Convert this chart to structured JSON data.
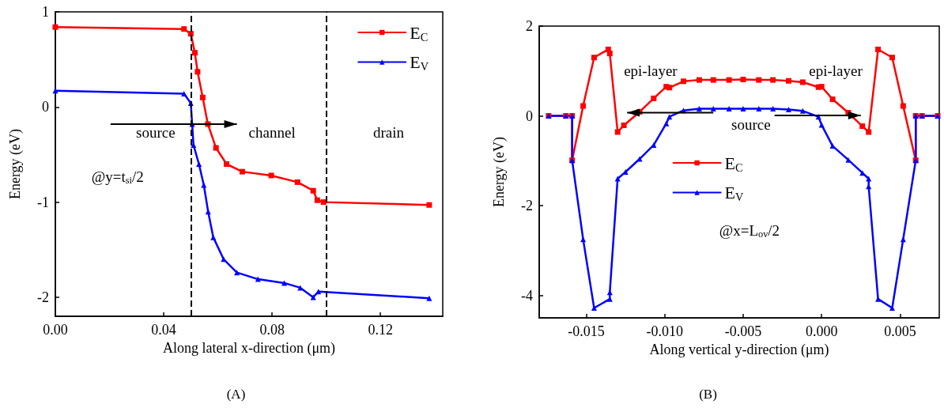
{
  "chart_data": [
    {
      "type": "line",
      "title": "(A)",
      "xlabel": "Along lateral x-direction (μm)",
      "ylabel": "Energy (eV)",
      "xlim": [
        0,
        0.143
      ],
      "xticks": [
        {
          "value": 0,
          "label": "0.00"
        },
        {
          "value": 0.04,
          "label": "0.04"
        },
        {
          "value": 0.08,
          "label": "0.08"
        },
        {
          "value": 0.12,
          "label": "0.12"
        }
      ],
      "ylim": [
        -2.2,
        1
      ],
      "yticks": [
        -2,
        -1,
        0,
        1
      ],
      "grid": false,
      "legend": "top right",
      "line_style": "solid",
      "series": [
        {
          "name": "E$_{C}$",
          "color": "#ff0000",
          "marker": "square",
          "x": [
            0,
            0.0475,
            0.05,
            0.0515,
            0.0525,
            0.0544,
            0.0563,
            0.0593,
            0.0632,
            0.069,
            0.0797,
            0.0894,
            0.0952,
            0.0967,
            0.099,
            0.138
          ],
          "values": [
            0.84,
            0.82,
            0.77,
            0.57,
            0.37,
            0.1,
            -0.18,
            -0.43,
            -0.6,
            -0.68,
            -0.72,
            -0.79,
            -0.88,
            -0.98,
            -1.0,
            -1.03
          ]
        },
        {
          "name": "E$_{V}$",
          "color": "#0000ff",
          "marker": "triangle",
          "x": [
            0,
            0.0475,
            0.05,
            0.0505,
            0.051,
            0.053,
            0.0548,
            0.0564,
            0.0583,
            0.0621,
            0.067,
            0.0748,
            0.0845,
            0.0904,
            0.0952,
            0.0971,
            0.138
          ],
          "values": [
            0.17,
            0.14,
            0.04,
            -0.18,
            -0.4,
            -0.6,
            -0.82,
            -1.1,
            -1.37,
            -1.6,
            -1.74,
            -1.81,
            -1.85,
            -1.9,
            -2.0,
            -1.94,
            -2.01
          ]
        }
      ],
      "ref_lines": [
        {
          "axis": "x",
          "value": 0.05,
          "color": "#000000",
          "line_style": "dashed"
        },
        {
          "axis": "x",
          "value": 0.1,
          "color": "#000000",
          "line_style": "dashed"
        }
      ],
      "annotations": [
        "source",
        "channel",
        "drain",
        "@y=t$_{si}$/2"
      ]
    },
    {
      "type": "line",
      "title": "(B)",
      "xlabel": "Along vertical y-direction (μm)",
      "ylabel": "Energy (eV)",
      "xlim": [
        -0.018,
        0.0075
      ],
      "xticks": [
        {
          "value": -0.015,
          "label": "-0.015"
        },
        {
          "value": -0.01,
          "label": "-0.010"
        },
        {
          "value": -0.005,
          "label": "-0.005"
        },
        {
          "value": 0,
          "label": "0.000"
        },
        {
          "value": 0.005,
          "label": "0.005"
        }
      ],
      "ylim": [
        -4.5,
        2
      ],
      "yticks": [
        -4,
        -2,
        0,
        2
      ],
      "grid": false,
      "legend": "center",
      "line_style": "solid",
      "series": [
        {
          "name": "E$_{C}$",
          "color": "#ff0000",
          "marker": "square",
          "x": [
            -0.0174,
            -0.0163,
            -0.0159,
            -0.0159,
            -0.0152,
            -0.0145,
            -0.0136,
            -0.0135,
            -0.013,
            -0.0126,
            -0.0116,
            -0.0107,
            -0.0099,
            -0.0097,
            -0.0088,
            -0.0078,
            -0.0069,
            -0.0059,
            -0.005,
            -0.004,
            -0.0031,
            -0.0021,
            -0.0012,
            -0.0002,
            0,
            0.0007,
            0.0017,
            0.0026,
            0.003,
            0.0036,
            0.0045,
            0.0052,
            0.006,
            0.006,
            0.0064,
            0.0074
          ],
          "values": [
            0,
            0,
            0,
            -0.99,
            0.22,
            1.3,
            1.48,
            1.39,
            -0.36,
            -0.21,
            0.09,
            0.39,
            0.65,
            0.63,
            0.77,
            0.8,
            0.8,
            0.8,
            0.81,
            0.8,
            0.8,
            0.78,
            0.75,
            0.64,
            0.65,
            0.37,
            0.07,
            -0.23,
            -0.36,
            1.48,
            1.3,
            0.22,
            -0.99,
            0,
            0,
            0
          ]
        },
        {
          "name": "E$_{V}$",
          "color": "#0000ff",
          "marker": "triangle",
          "x": [
            -0.0174,
            -0.0163,
            -0.0159,
            -0.0159,
            -0.0152,
            -0.0145,
            -0.0135,
            -0.0135,
            -0.013,
            -0.0125,
            -0.0116,
            -0.0107,
            -0.0099,
            -0.0097,
            -0.0088,
            -0.0078,
            -0.0069,
            -0.0059,
            -0.005,
            -0.004,
            -0.0031,
            -0.0021,
            -0.0012,
            -0.0002,
            0,
            0.0007,
            0.0017,
            0.0026,
            0.003,
            0.003,
            0.0036,
            0.0045,
            0.0052,
            0.006,
            0.006,
            0.0064,
            0.0074
          ],
          "values": [
            0,
            0,
            0,
            -0.99,
            -2.75,
            -4.28,
            -4.08,
            -3.93,
            -1.4,
            -1.25,
            -0.96,
            -0.65,
            -0.17,
            -0.02,
            0.12,
            0.16,
            0.16,
            0.16,
            0.16,
            0.16,
            0.16,
            0.14,
            0.11,
            -0.02,
            -0.2,
            -0.67,
            -0.98,
            -1.27,
            -1.4,
            -1.57,
            -4.08,
            -4.28,
            -2.75,
            -0.99,
            0,
            0,
            0
          ]
        }
      ],
      "annotations": [
        "epi-layer",
        "epi-layer",
        "source",
        "@x=L$_{ov}$/2"
      ]
    }
  ]
}
